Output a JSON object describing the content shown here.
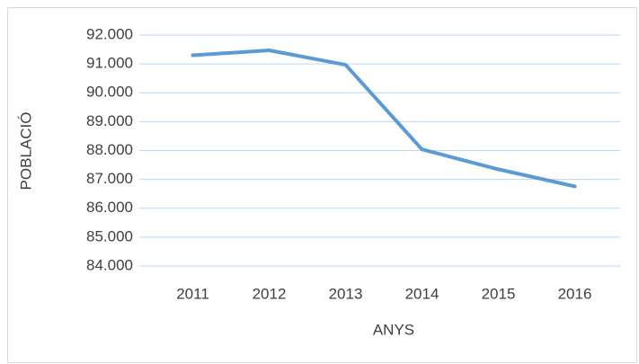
{
  "chart_data": {
    "type": "line",
    "xlabel": "ANYS",
    "ylabel": "POBLACIÓ",
    "categories": [
      "2011",
      "2012",
      "2013",
      "2014",
      "2015",
      "2016"
    ],
    "values": [
      91300,
      91470,
      90970,
      88040,
      87350,
      86760
    ],
    "color": "#5b9bd5",
    "ylim": [
      84000,
      92000
    ],
    "yticks": [
      {
        "value": 84000,
        "label": "84.000"
      },
      {
        "value": 85000,
        "label": "85.000"
      },
      {
        "value": 86000,
        "label": "86.000"
      },
      {
        "value": 87000,
        "label": "87.000"
      },
      {
        "value": 88000,
        "label": "88.000"
      },
      {
        "value": 89000,
        "label": "89.000"
      },
      {
        "value": 90000,
        "label": "90.000"
      },
      {
        "value": 91000,
        "label": "91.000"
      },
      {
        "value": 92000,
        "label": "92.000"
      }
    ],
    "grid": true
  }
}
